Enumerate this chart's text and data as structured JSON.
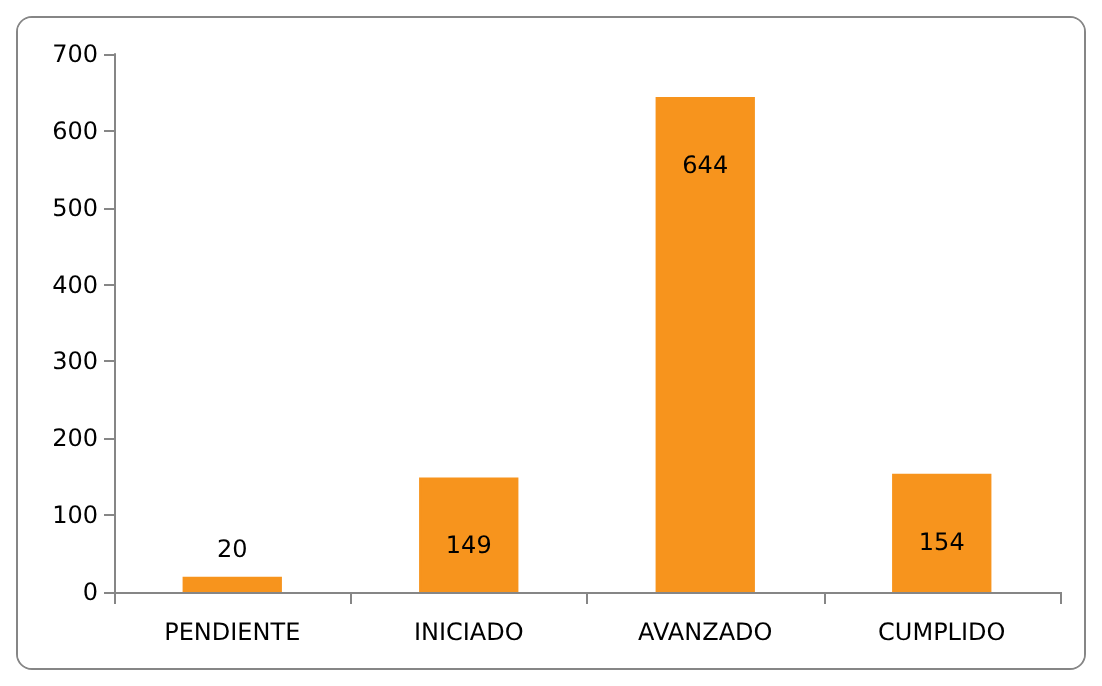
{
  "chart_data": {
    "type": "bar",
    "categories": [
      "PENDIENTE",
      "INICIADO",
      "AVANZADO",
      "CUMPLIDO"
    ],
    "values": [
      20,
      149,
      644,
      154
    ],
    "color": "#f7941d",
    "ylim": [
      0,
      700
    ],
    "yticks": [
      0,
      100,
      200,
      300,
      400,
      500,
      600,
      700
    ],
    "grid": false,
    "data_labels": true
  }
}
